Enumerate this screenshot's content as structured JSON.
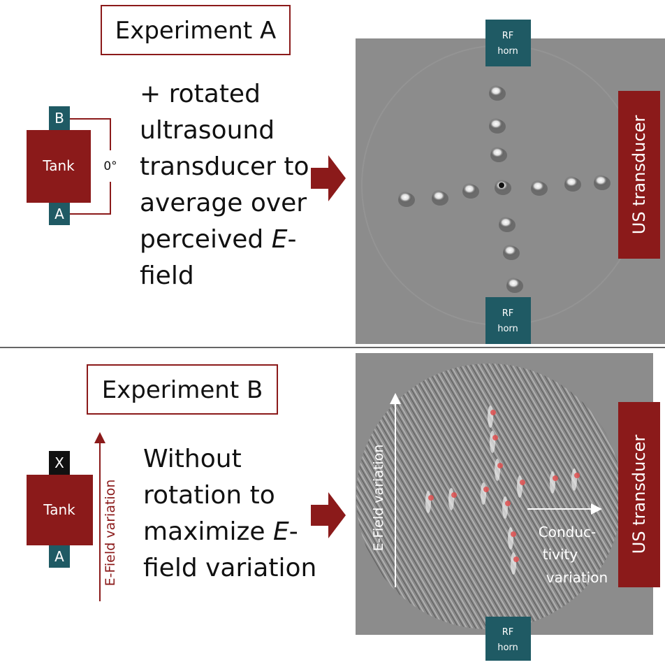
{
  "experiment_a": {
    "title": "Experiment A",
    "tank": {
      "label": "Tank",
      "top_port": "B",
      "bottom_port": "A",
      "angle": "0°"
    },
    "description": [
      [
        "+ rotated"
      ],
      [
        "ultrasound"
      ],
      [
        "transducer to"
      ],
      [
        "average over"
      ],
      [
        "perceived ",
        "E",
        "-"
      ],
      [
        "field"
      ]
    ],
    "image": {
      "rf_horn_top": [
        "RF",
        "horn"
      ],
      "rf_horn_bottom": [
        "RF",
        "horn"
      ],
      "us_transducer": "US transducer"
    }
  },
  "experiment_b": {
    "title": "Experiment B",
    "tank": {
      "label": "Tank",
      "top_port": "X",
      "bottom_port": "A",
      "arrow_label": "E-Field variation"
    },
    "description": [
      [
        "Without"
      ],
      [
        "rotation to"
      ],
      [
        "maximize ",
        "E",
        "-"
      ],
      [
        "field variation"
      ]
    ],
    "image": {
      "e_field_label": "E-Field variation",
      "conductivity_label": [
        "Conduc-",
        "tivity",
        "variation"
      ],
      "rf_horn_bottom": [
        "RF",
        "horn"
      ],
      "us_transducer": "US transducer"
    }
  }
}
